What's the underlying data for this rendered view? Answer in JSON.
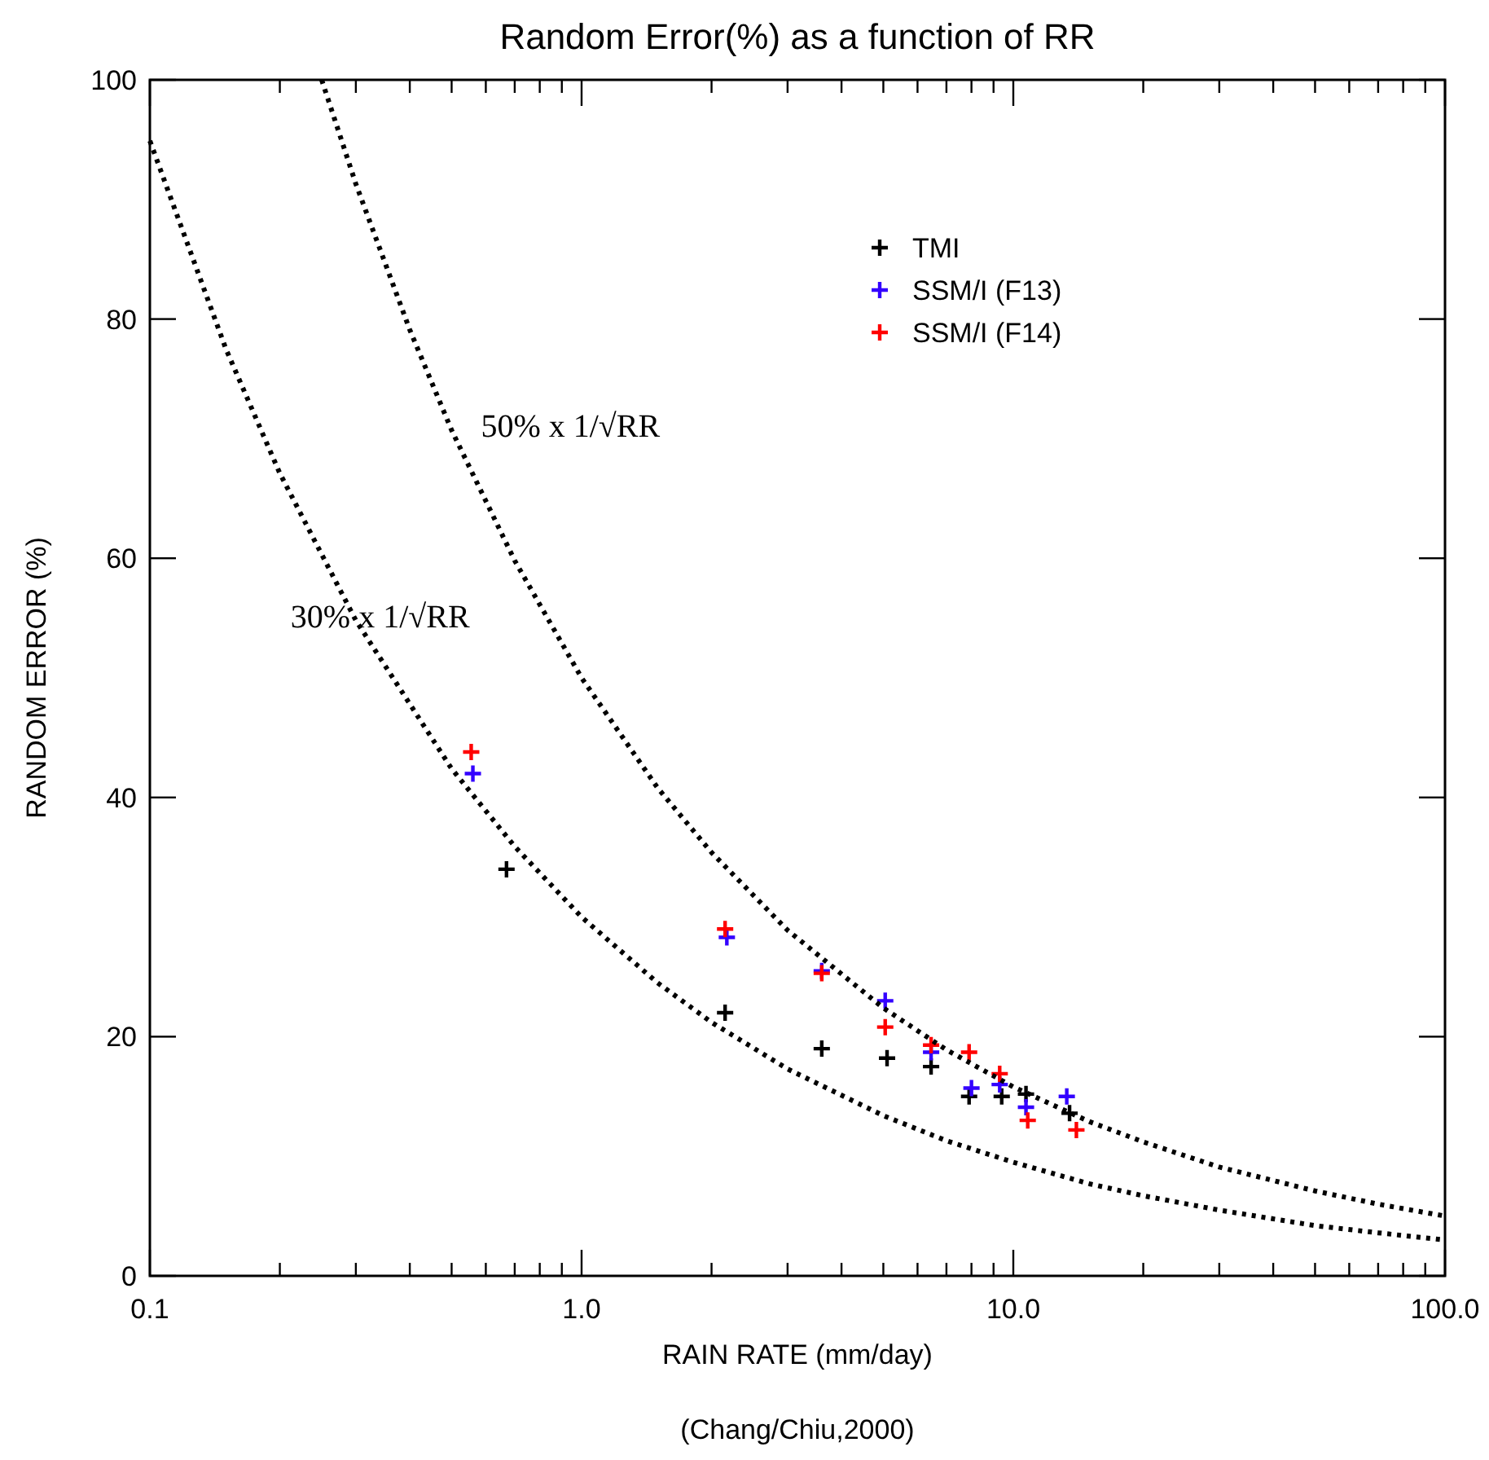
{
  "chart_data": {
    "type": "scatter",
    "title": "Random Error(%) as a function of RR",
    "xlabel": "RAIN RATE (mm/day)",
    "ylabel": "RANDOM ERROR (%)",
    "log": "x",
    "xlim": [
      0.1,
      100
    ],
    "ylim": [
      0,
      100
    ],
    "xticks": [
      0.1,
      {
        "value": 0.2,
        "label": null
      },
      {
        "value": 0.3,
        "label": null
      },
      {
        "value": 0.4,
        "label": null
      },
      {
        "value": 0.5,
        "label": null
      },
      {
        "value": 0.6,
        "label": null
      },
      {
        "value": 0.7,
        "label": null
      },
      {
        "value": 0.8,
        "label": null
      },
      {
        "value": 0.9,
        "label": null
      },
      {
        "value": 1,
        "label": "1.0"
      },
      {
        "value": 2,
        "label": null
      },
      {
        "value": 3,
        "label": null
      },
      {
        "value": 4,
        "label": null
      },
      {
        "value": 5,
        "label": null
      },
      {
        "value": 6,
        "label": null
      },
      {
        "value": 7,
        "label": null
      },
      {
        "value": 8,
        "label": null
      },
      {
        "value": 9,
        "label": null
      },
      {
        "value": 10,
        "label": "10.0"
      },
      {
        "value": 20,
        "label": null
      },
      {
        "value": 30,
        "label": null
      },
      {
        "value": 40,
        "label": null
      },
      {
        "value": 50,
        "label": null
      },
      {
        "value": 60,
        "label": null
      },
      {
        "value": 70,
        "label": null
      },
      {
        "value": 80,
        "label": null
      },
      {
        "value": 90,
        "label": null
      },
      {
        "value": 100,
        "label": "100.0"
      }
    ],
    "yticks": [
      0,
      20,
      40,
      60,
      80,
      100
    ],
    "grid": false,
    "legend": "top right",
    "marker": "cross",
    "series": [
      {
        "name": "TMI",
        "color": "#000000",
        "x": [
          0.67,
          2.15,
          3.6,
          5.1,
          6.45,
          7.9,
          9.4,
          10.7,
          13.5
        ],
        "values": [
          34,
          22,
          19,
          18.2,
          17.5,
          15,
          15,
          15.2,
          13.6
        ]
      },
      {
        "name": "SSM/I (F13)",
        "color": "#3300ff",
        "x": [
          0.56,
          2.17,
          3.6,
          5.05,
          6.45,
          8.0,
          9.3,
          10.7,
          13.3
        ],
        "values": [
          42,
          28.3,
          25.5,
          23,
          18.7,
          15.7,
          16,
          14.1,
          15
        ]
      },
      {
        "name": "SSM/I (F14)",
        "color": "#ff0000",
        "x": [
          0.555,
          2.15,
          3.6,
          5.05,
          6.45,
          7.9,
          9.3,
          10.8,
          14.0
        ],
        "values": [
          43.8,
          29,
          25.3,
          20.8,
          19.3,
          18.7,
          16.9,
          13,
          12.2
        ]
      },
      {
        "type": "line",
        "name": "50% x 1/√RR",
        "color": "#000000",
        "marker": "none",
        "line_style": "dotted",
        "x": [
          0.25,
          0.3,
          0.4,
          0.5,
          0.7,
          1,
          1.5,
          2,
          3,
          5,
          7,
          10,
          15,
          20,
          30,
          50,
          70,
          100
        ],
        "values": [
          100,
          91.3,
          79.1,
          70.7,
          59.8,
          50,
          40.8,
          35.4,
          28.9,
          22.4,
          18.9,
          15.8,
          12.9,
          11.2,
          9.1,
          7.1,
          6.0,
          5.0
        ]
      },
      {
        "type": "line",
        "name": "30% x 1/√RR",
        "color": "#000000",
        "marker": "none",
        "line_style": "dotted",
        "x": [
          0.1,
          0.15,
          0.2,
          0.3,
          0.5,
          0.7,
          1,
          1.5,
          2,
          3,
          5,
          7,
          10,
          15,
          20,
          30,
          50,
          70,
          100
        ],
        "values": [
          94.9,
          77.5,
          67.1,
          54.8,
          42.4,
          35.9,
          30,
          24.5,
          21.2,
          17.3,
          13.4,
          11.3,
          9.5,
          7.7,
          6.7,
          5.5,
          4.2,
          3.6,
          3.0
        ]
      }
    ],
    "annotations": [
      "(Chang/Chiu,2000)"
    ]
  }
}
